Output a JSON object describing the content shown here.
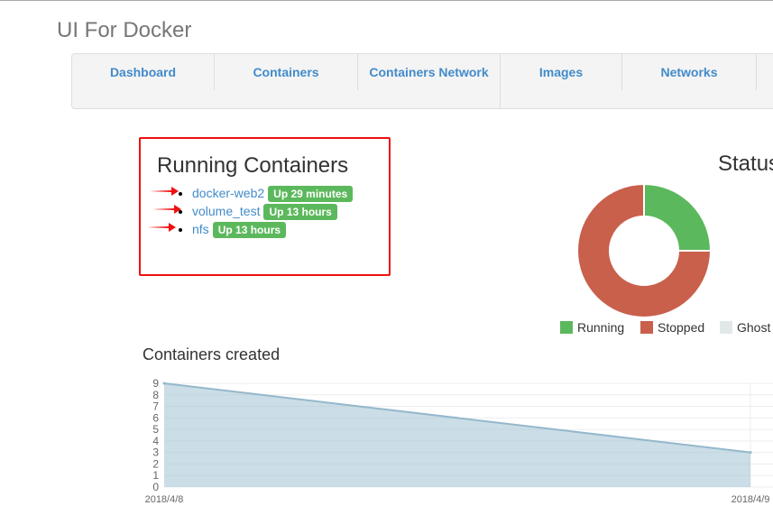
{
  "brand": "UI For Docker",
  "nav": [
    {
      "label": "Dashboard"
    },
    {
      "label": "Containers"
    },
    {
      "label": "Containers Network"
    },
    {
      "label": "Images"
    },
    {
      "label": "Networks"
    }
  ],
  "running": {
    "title": "Running Containers",
    "items": [
      {
        "name": "docker-web2",
        "status": "Up 29 minutes"
      },
      {
        "name": "volume_test",
        "status": "Up 13 hours"
      },
      {
        "name": "nfs",
        "status": "Up 13 hours"
      }
    ]
  },
  "status": {
    "title": "Status",
    "legend": [
      {
        "label": "Running",
        "color": "#5cb85c"
      },
      {
        "label": "Stopped",
        "color": "#c9604c"
      },
      {
        "label": "Ghost",
        "color": "#e2e8e8"
      }
    ]
  },
  "chart_data": [
    {
      "type": "pie",
      "title": "Status",
      "donut": true,
      "categories": [
        "Running",
        "Stopped",
        "Ghost"
      ],
      "values": [
        25,
        75,
        0
      ],
      "colors": [
        "#5cb85c",
        "#c9604c",
        "#e2e8e8"
      ]
    },
    {
      "type": "area",
      "title": "Containers created",
      "x": [
        "2018/4/8",
        "2018/4/9"
      ],
      "values": [
        9,
        3
      ],
      "ylim": [
        0,
        9
      ],
      "yticks": [
        "0",
        "1",
        "2",
        "3",
        "4",
        "5",
        "6",
        "7",
        "8",
        "9"
      ],
      "grid": true,
      "color": "#94b8cc"
    }
  ]
}
